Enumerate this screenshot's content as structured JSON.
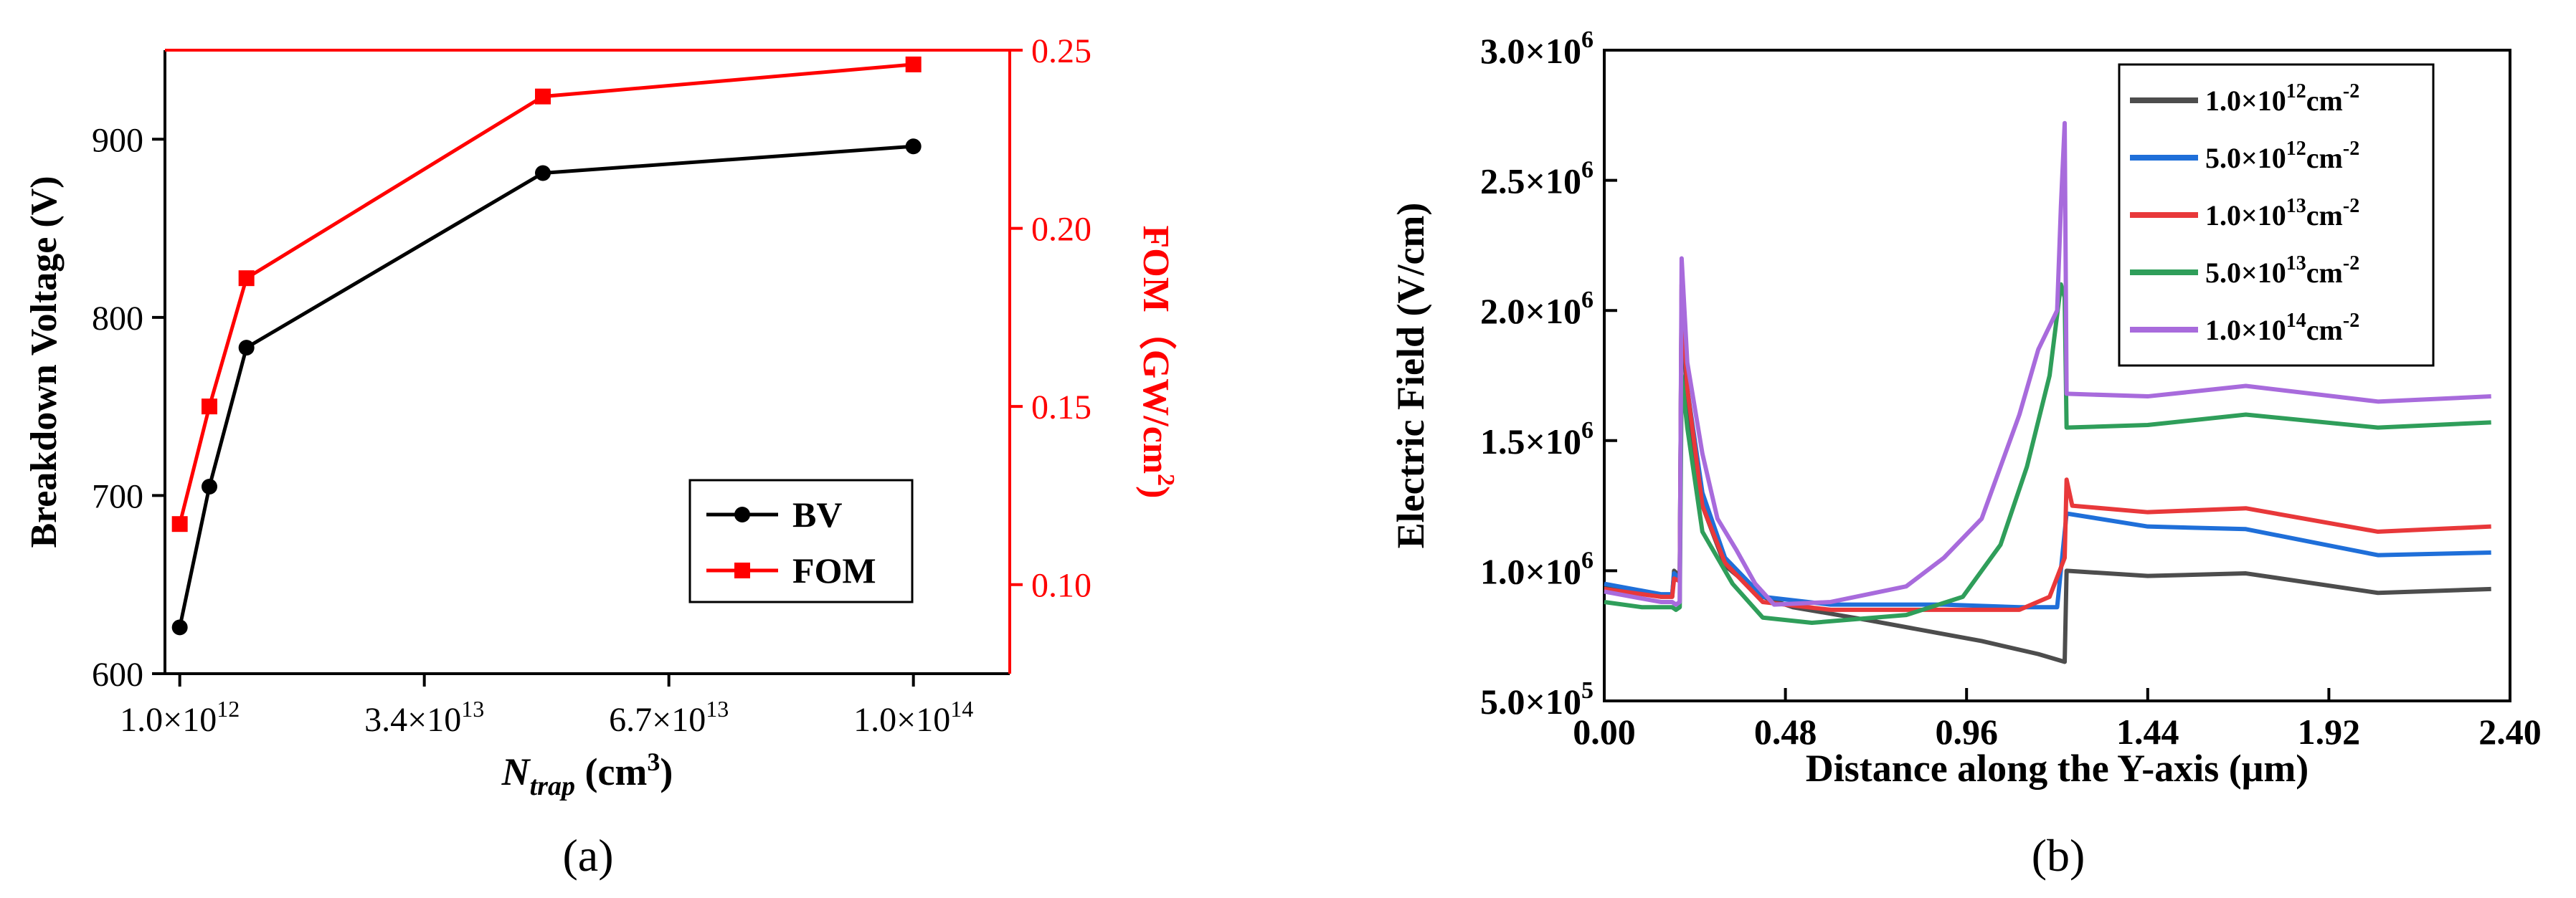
{
  "panels": [
    {
      "label": "(a)",
      "chart_data": {
        "type": "line",
        "title": "",
        "xlabel_main": "N",
        "xlabel_sub": "trap",
        "xlabel_unit": " (cm",
        "xlabel_unit_sup": "3",
        "xlabel_close": ")",
        "x": [
          1000000000000.0,
          5000000000000.0,
          10000000000000.0,
          50000000000000.0,
          100000000000000.0
        ],
        "xticks": [
          {
            "value": 1000000000000.0,
            "mant": "1.0",
            "exp": "12"
          },
          {
            "value": 34000000000000.0,
            "mant": "3.4",
            "exp": "13"
          },
          {
            "value": 67000000000000.0,
            "mant": "6.7",
            "exp": "13"
          },
          {
            "value": 100000000000000.0,
            "mant": "1.0",
            "exp": "14"
          }
        ],
        "xlim": [
          -1000000000000.0,
          113000000000000.0
        ],
        "y_left": {
          "label": "Breakdown Voltage (V)",
          "ylim": [
            600,
            950
          ],
          "ticks": [
            600,
            700,
            800,
            900
          ],
          "color": "#000000"
        },
        "y_right": {
          "label_main": "FOM（GW/cm",
          "label_sup": "2",
          "label_close": ")",
          "ylim": [
            0.075,
            0.25
          ],
          "ticks": [
            0.1,
            0.15,
            0.2,
            0.25
          ],
          "tick_labels": [
            "0.10",
            "0.15",
            "0.20",
            "0.25"
          ],
          "color": "#ff0000"
        },
        "series": [
          {
            "name": "BV",
            "axis": "left",
            "color": "#000000",
            "marker": "circle",
            "values": [
              626,
              705,
              783,
              881,
              896
            ]
          },
          {
            "name": "FOM",
            "axis": "right",
            "color": "#ff0000",
            "marker": "square",
            "values": [
              0.117,
              0.15,
              0.186,
              0.237,
              0.246
            ]
          }
        ],
        "legend": "bottom-right"
      }
    },
    {
      "label": "(b)",
      "chart_data": {
        "type": "line",
        "title": "",
        "xlabel": "Distance along the Y-axis (μm)",
        "ylabel": "Electric Field (V/cm)",
        "xlim": [
          0,
          2.4
        ],
        "ylim": [
          500000,
          3000000
        ],
        "xticks": [
          0,
          0.48,
          0.96,
          1.44,
          1.92,
          2.4
        ],
        "xtick_labels": [
          "0.00",
          "0.48",
          "0.96",
          "1.44",
          "1.92",
          "2.40"
        ],
        "yticks": [
          {
            "value": 500000,
            "mant": "5.0",
            "exp": "5"
          },
          {
            "value": 1000000,
            "mant": "1.0",
            "exp": "6"
          },
          {
            "value": 1500000,
            "mant": "1.5",
            "exp": "6"
          },
          {
            "value": 2000000,
            "mant": "2.0",
            "exp": "6"
          },
          {
            "value": 2500000,
            "mant": "2.5",
            "exp": "6"
          },
          {
            "value": 3000000,
            "mant": "3.0",
            "exp": "6"
          }
        ],
        "legend": "top-right",
        "series": [
          {
            "name_mant": "1.0",
            "name_exp": "12",
            "name_unit": "cm",
            "name_unit_sup": "-2",
            "color": "#4d4d4d",
            "points": [
              [
                0,
                940000
              ],
              [
                0.15,
                900000
              ],
              [
                0.18,
                900000
              ],
              [
                0.185,
                1000000
              ],
              [
                0.2,
                980000
              ],
              [
                0.205,
                2050000
              ],
              [
                0.22,
                1650000
              ],
              [
                0.26,
                1250000
              ],
              [
                0.32,
                1020000
              ],
              [
                0.42,
                900000
              ],
              [
                0.5,
                860000
              ],
              [
                0.7,
                810000
              ],
              [
                1.0,
                730000
              ],
              [
                1.15,
                680000
              ],
              [
                1.22,
                650000
              ],
              [
                1.225,
                1000000
              ],
              [
                1.44,
                980000
              ],
              [
                1.7,
                990000
              ],
              [
                2.05,
                915000
              ],
              [
                2.35,
                930000
              ]
            ]
          },
          {
            "name_mant": "5.0",
            "name_exp": "12",
            "name_unit": "cm",
            "name_unit_sup": "-2",
            "color": "#1f6fd9",
            "points": [
              [
                0,
                950000
              ],
              [
                0.15,
                910000
              ],
              [
                0.18,
                910000
              ],
              [
                0.185,
                990000
              ],
              [
                0.2,
                970000
              ],
              [
                0.205,
                2080000
              ],
              [
                0.22,
                1700000
              ],
              [
                0.26,
                1300000
              ],
              [
                0.32,
                1050000
              ],
              [
                0.42,
                900000
              ],
              [
                0.6,
                870000
              ],
              [
                0.9,
                870000
              ],
              [
                1.1,
                860000
              ],
              [
                1.2,
                860000
              ],
              [
                1.225,
                1220000
              ],
              [
                1.44,
                1170000
              ],
              [
                1.7,
                1160000
              ],
              [
                2.05,
                1060000
              ],
              [
                2.35,
                1070000
              ]
            ]
          },
          {
            "name_mant": "1.0",
            "name_exp": "13",
            "name_unit": "cm",
            "name_unit_sup": "-2",
            "color": "#e8383a",
            "points": [
              [
                0,
                930000
              ],
              [
                0.15,
                900000
              ],
              [
                0.18,
                900000
              ],
              [
                0.185,
                970000
              ],
              [
                0.2,
                960000
              ],
              [
                0.205,
                2100000
              ],
              [
                0.22,
                1700000
              ],
              [
                0.26,
                1250000
              ],
              [
                0.32,
                1030000
              ],
              [
                0.42,
                880000
              ],
              [
                0.6,
                850000
              ],
              [
                0.9,
                850000
              ],
              [
                1.1,
                850000
              ],
              [
                1.18,
                900000
              ],
              [
                1.22,
                1050000
              ],
              [
                1.225,
                1350000
              ],
              [
                1.24,
                1250000
              ],
              [
                1.44,
                1225000
              ],
              [
                1.7,
                1240000
              ],
              [
                2.05,
                1150000
              ],
              [
                2.35,
                1170000
              ]
            ]
          },
          {
            "name_mant": "5.0",
            "name_exp": "13",
            "name_unit": "cm",
            "name_unit_sup": "-2",
            "color": "#2f9e5a",
            "points": [
              [
                0,
                880000
              ],
              [
                0.1,
                860000
              ],
              [
                0.18,
                860000
              ],
              [
                0.19,
                850000
              ],
              [
                0.2,
                860000
              ],
              [
                0.205,
                1750000
              ],
              [
                0.22,
                1550000
              ],
              [
                0.26,
                1150000
              ],
              [
                0.34,
                950000
              ],
              [
                0.42,
                820000
              ],
              [
                0.55,
                800000
              ],
              [
                0.8,
                830000
              ],
              [
                0.95,
                900000
              ],
              [
                1.05,
                1100000
              ],
              [
                1.12,
                1400000
              ],
              [
                1.18,
                1750000
              ],
              [
                1.21,
                2100000
              ],
              [
                1.22,
                2050000
              ],
              [
                1.225,
                1550000
              ],
              [
                1.44,
                1560000
              ],
              [
                1.7,
                1600000
              ],
              [
                2.05,
                1550000
              ],
              [
                2.35,
                1570000
              ]
            ]
          },
          {
            "name_mant": "1.0",
            "name_exp": "14",
            "name_unit": "cm",
            "name_unit_sup": "-2",
            "color": "#a86bdc",
            "points": [
              [
                0,
                920000
              ],
              [
                0.15,
                880000
              ],
              [
                0.18,
                880000
              ],
              [
                0.19,
                870000
              ],
              [
                0.2,
                880000
              ],
              [
                0.205,
                2200000
              ],
              [
                0.22,
                1800000
              ],
              [
                0.26,
                1450000
              ],
              [
                0.3,
                1200000
              ],
              [
                0.35,
                1080000
              ],
              [
                0.4,
                950000
              ],
              [
                0.45,
                870000
              ],
              [
                0.6,
                880000
              ],
              [
                0.8,
                940000
              ],
              [
                0.9,
                1050000
              ],
              [
                1.0,
                1200000
              ],
              [
                1.1,
                1600000
              ],
              [
                1.15,
                1850000
              ],
              [
                1.2,
                2000000
              ],
              [
                1.21,
                2400000
              ],
              [
                1.22,
                2720000
              ],
              [
                1.225,
                1680000
              ],
              [
                1.44,
                1670000
              ],
              [
                1.7,
                1710000
              ],
              [
                2.05,
                1650000
              ],
              [
                2.35,
                1670000
              ]
            ]
          }
        ]
      }
    }
  ]
}
